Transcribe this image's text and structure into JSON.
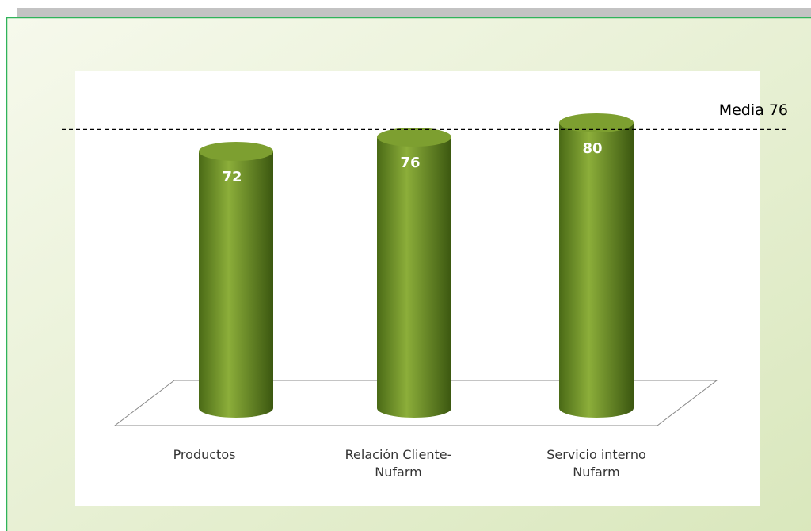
{
  "chart_data": {
    "type": "cylinder",
    "categories": [
      "Productos",
      "Relación Cliente-Nufarm",
      "Servicio interno Nufarm"
    ],
    "values": [
      72,
      76,
      80
    ],
    "color": "#6b8e23",
    "reference_line": {
      "label": "Media 76",
      "value": 76
    }
  }
}
